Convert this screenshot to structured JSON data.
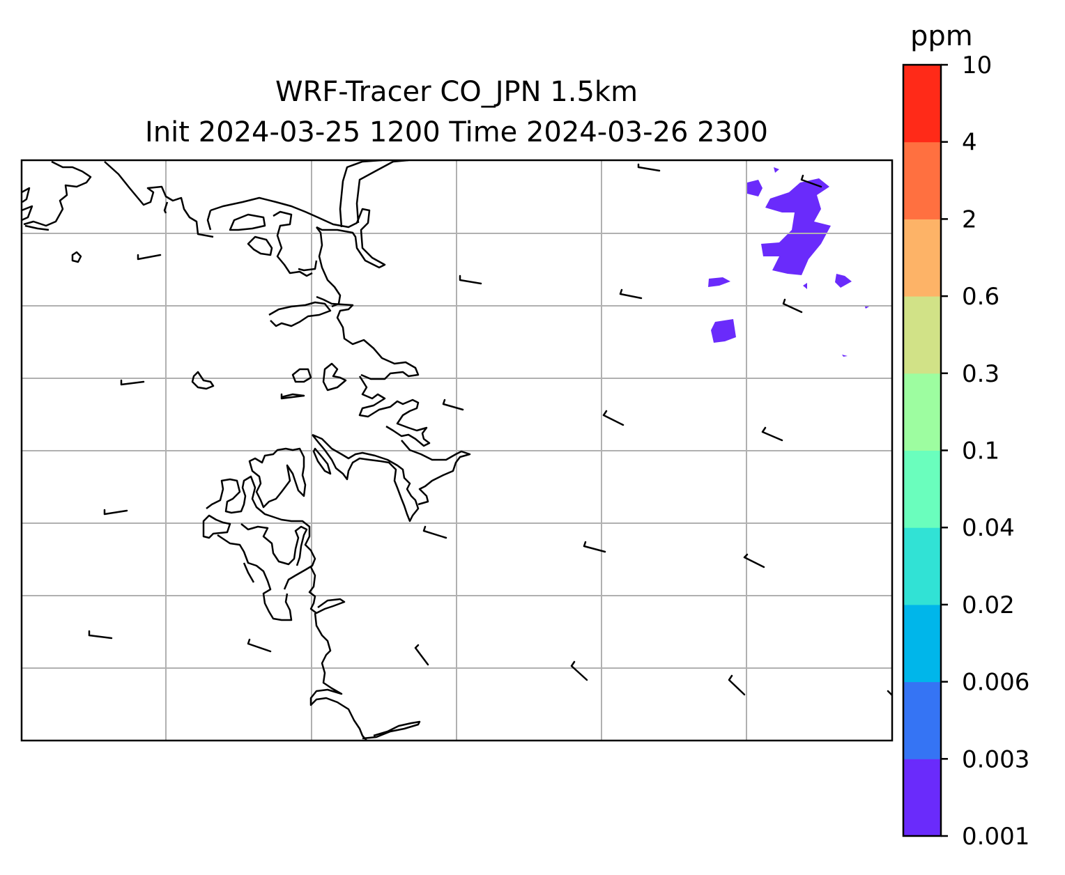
{
  "title_line1": "WRF-Tracer CO_JPN 1.5km",
  "title_line2": "Init 2024-03-25 1200 Time 2024-03-26 2300",
  "colorbar": {
    "unit": "ppm",
    "ticks": [
      "0.001",
      "0.003",
      "0.006",
      "0.02",
      "0.04",
      "0.1",
      "0.3",
      "0.6",
      "2",
      "4",
      "10"
    ],
    "colors": [
      "#6a2bfb",
      "#3574f4",
      "#00b6ea",
      "#31e2d5",
      "#6afebd",
      "#9dfda0",
      "#d1e287",
      "#fdb367",
      "#ff7040",
      "#ff2a18"
    ]
  },
  "chart_data": {
    "type": "heatmap",
    "field": "CO tracer concentration",
    "unit": "ppm",
    "contour_levels": [
      0.001,
      0.003,
      0.006,
      0.02,
      0.04,
      0.1,
      0.3,
      0.6,
      2,
      4,
      10
    ],
    "visible_concentration_class": "0.001-0.003",
    "overlays": [
      "coastlines",
      "gridlines",
      "wind barbs"
    ],
    "grid": true
  }
}
